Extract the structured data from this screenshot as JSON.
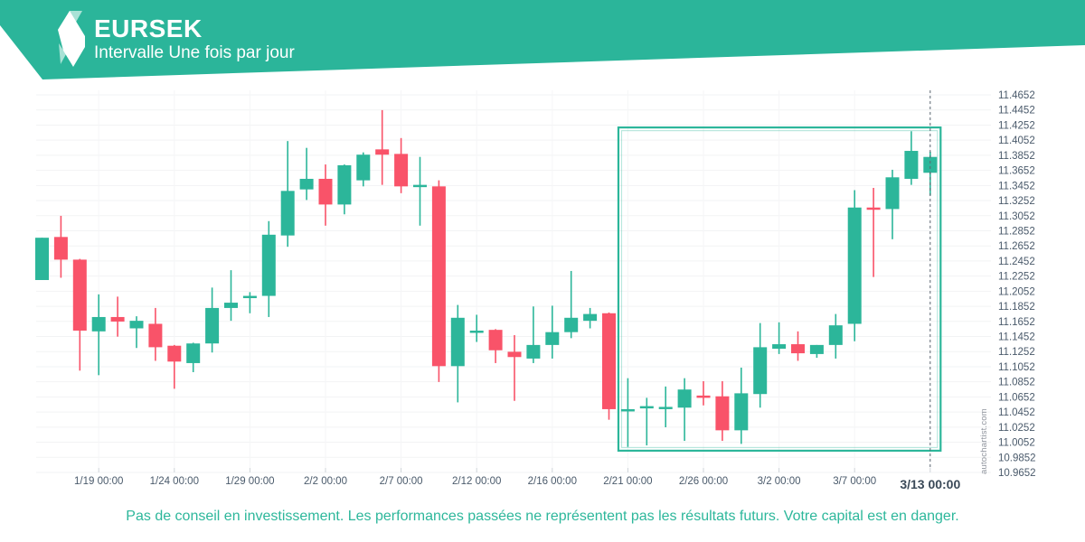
{
  "header": {
    "title": "EURSEK",
    "subtitle": "Intervalle Une fois par jour"
  },
  "watermark": "autochartist.com",
  "footer": {
    "disclaimer": "Pas de conseil en investissement. Les performances passées ne représentent pas les résultats futurs. Votre capital est en danger."
  },
  "colors": {
    "accent": "#2bb59a",
    "logo_pale": "#a9e2d6",
    "up": "#2cb69a",
    "down": "#f95369",
    "pattern_box": "#2cb69a",
    "grid": "#f2f3f4",
    "axis_text": "#4a5a6b",
    "axis_text_bold": "#3a4958",
    "dashed_line": "#5b6570"
  },
  "chart_data": {
    "type": "candlestick",
    "symbol": "EURSEK",
    "interval": "Une fois par jour",
    "y_axis": {
      "min": 10.9652,
      "max": 11.4652,
      "step": 0.02,
      "labels": [
        "11.4652",
        "11.4452",
        "11.4252",
        "11.4052",
        "11.3852",
        "11.3652",
        "11.3452",
        "11.3252",
        "11.3052",
        "11.2852",
        "11.2652",
        "11.2452",
        "11.2252",
        "11.2052",
        "11.1852",
        "11.1652",
        "11.1452",
        "11.1252",
        "11.1052",
        "11.0852",
        "11.0652",
        "11.0452",
        "11.0252",
        "11.0052",
        "10.9852",
        "10.9652"
      ]
    },
    "x_axis": {
      "labels": [
        {
          "text": "1/19 00:00",
          "index": 3
        },
        {
          "text": "1/24 00:00",
          "index": 7
        },
        {
          "text": "1/29 00:00",
          "index": 11
        },
        {
          "text": "2/2 00:00",
          "index": 15
        },
        {
          "text": "2/7 00:00",
          "index": 19
        },
        {
          "text": "2/12 00:00",
          "index": 23
        },
        {
          "text": "2/16 00:00",
          "index": 27
        },
        {
          "text": "2/21 00:00",
          "index": 31
        },
        {
          "text": "2/26 00:00",
          "index": 35
        },
        {
          "text": "3/2 00:00",
          "index": 39
        },
        {
          "text": "3/7 00:00",
          "index": 43
        },
        {
          "text": "3/13 00:00",
          "index": 47,
          "emphasis": true
        }
      ]
    },
    "candles": [
      {
        "o": 11.22,
        "h": 11.276,
        "l": 11.22,
        "c": 11.276
      },
      {
        "o": 11.277,
        "h": 11.305,
        "l": 11.223,
        "c": 11.247
      },
      {
        "o": 11.247,
        "h": 11.248,
        "l": 11.1,
        "c": 11.153
      },
      {
        "o": 11.152,
        "h": 11.201,
        "l": 11.094,
        "c": 11.171
      },
      {
        "o": 11.171,
        "h": 11.198,
        "l": 11.145,
        "c": 11.165
      },
      {
        "o": 11.156,
        "h": 11.172,
        "l": 11.13,
        "c": 11.166
      },
      {
        "o": 11.162,
        "h": 11.183,
        "l": 11.113,
        "c": 11.131
      },
      {
        "o": 11.133,
        "h": 11.134,
        "l": 11.076,
        "c": 11.112
      },
      {
        "o": 11.11,
        "h": 11.137,
        "l": 11.098,
        "c": 11.136
      },
      {
        "o": 11.136,
        "h": 11.21,
        "l": 11.124,
        "c": 11.183
      },
      {
        "o": 11.183,
        "h": 11.233,
        "l": 11.166,
        "c": 11.19
      },
      {
        "o": 11.198,
        "h": 11.204,
        "l": 11.176,
        "c": 11.199
      },
      {
        "o": 11.199,
        "h": 11.298,
        "l": 11.171,
        "c": 11.28
      },
      {
        "o": 11.279,
        "h": 11.404,
        "l": 11.264,
        "c": 11.338
      },
      {
        "o": 11.34,
        "h": 11.395,
        "l": 11.326,
        "c": 11.354
      },
      {
        "o": 11.354,
        "h": 11.373,
        "l": 11.292,
        "c": 11.32
      },
      {
        "o": 11.32,
        "h": 11.373,
        "l": 11.307,
        "c": 11.372
      },
      {
        "o": 11.352,
        "h": 11.389,
        "l": 11.344,
        "c": 11.386
      },
      {
        "o": 11.393,
        "h": 11.445,
        "l": 11.346,
        "c": 11.386
      },
      {
        "o": 11.387,
        "h": 11.408,
        "l": 11.335,
        "c": 11.344
      },
      {
        "o": 11.345,
        "h": 11.383,
        "l": 11.292,
        "c": 11.346
      },
      {
        "o": 11.344,
        "h": 11.352,
        "l": 11.085,
        "c": 11.106
      },
      {
        "o": 11.106,
        "h": 11.187,
        "l": 11.058,
        "c": 11.17
      },
      {
        "o": 11.152,
        "h": 11.174,
        "l": 11.138,
        "c": 11.153
      },
      {
        "o": 11.154,
        "h": 11.155,
        "l": 11.11,
        "c": 11.127
      },
      {
        "o": 11.125,
        "h": 11.147,
        "l": 11.06,
        "c": 11.118
      },
      {
        "o": 11.116,
        "h": 11.185,
        "l": 11.11,
        "c": 11.134
      },
      {
        "o": 11.134,
        "h": 11.186,
        "l": 11.116,
        "c": 11.151
      },
      {
        "o": 11.151,
        "h": 11.232,
        "l": 11.143,
        "c": 11.17
      },
      {
        "o": 11.166,
        "h": 11.183,
        "l": 11.156,
        "c": 11.175
      },
      {
        "o": 11.176,
        "h": 11.177,
        "l": 11.035,
        "c": 11.049
      },
      {
        "o": 11.048,
        "h": 11.09,
        "l": 10.999,
        "c": 11.049
      },
      {
        "o": 11.052,
        "h": 11.064,
        "l": 11.001,
        "c": 11.053
      },
      {
        "o": 11.051,
        "h": 11.079,
        "l": 11.025,
        "c": 11.052
      },
      {
        "o": 11.051,
        "h": 11.09,
        "l": 11.007,
        "c": 11.075
      },
      {
        "o": 11.067,
        "h": 11.086,
        "l": 11.054,
        "c": 11.066
      },
      {
        "o": 11.066,
        "h": 11.086,
        "l": 11.007,
        "c": 11.021
      },
      {
        "o": 11.021,
        "h": 11.104,
        "l": 11.003,
        "c": 11.07
      },
      {
        "o": 11.069,
        "h": 11.163,
        "l": 11.051,
        "c": 11.131
      },
      {
        "o": 11.129,
        "h": 11.164,
        "l": 11.122,
        "c": 11.135
      },
      {
        "o": 11.135,
        "h": 11.152,
        "l": 11.113,
        "c": 11.123
      },
      {
        "o": 11.122,
        "h": 11.134,
        "l": 11.117,
        "c": 11.134
      },
      {
        "o": 11.134,
        "h": 11.175,
        "l": 11.116,
        "c": 11.16
      },
      {
        "o": 11.162,
        "h": 11.339,
        "l": 11.139,
        "c": 11.316
      },
      {
        "o": 11.316,
        "h": 11.342,
        "l": 11.224,
        "c": 11.315
      },
      {
        "o": 11.314,
        "h": 11.366,
        "l": 11.274,
        "c": 11.356
      },
      {
        "o": 11.354,
        "h": 11.417,
        "l": 11.346,
        "c": 11.391
      },
      {
        "o": 11.362,
        "h": 11.39,
        "l": 11.332,
        "c": 11.383
      }
    ],
    "pattern_box": {
      "start_index": 30.5,
      "end_index": 47.55,
      "top_price": 11.422,
      "bottom_price": 10.994
    },
    "dashed_line_index": 47,
    "legend": "none",
    "grid": "on"
  }
}
